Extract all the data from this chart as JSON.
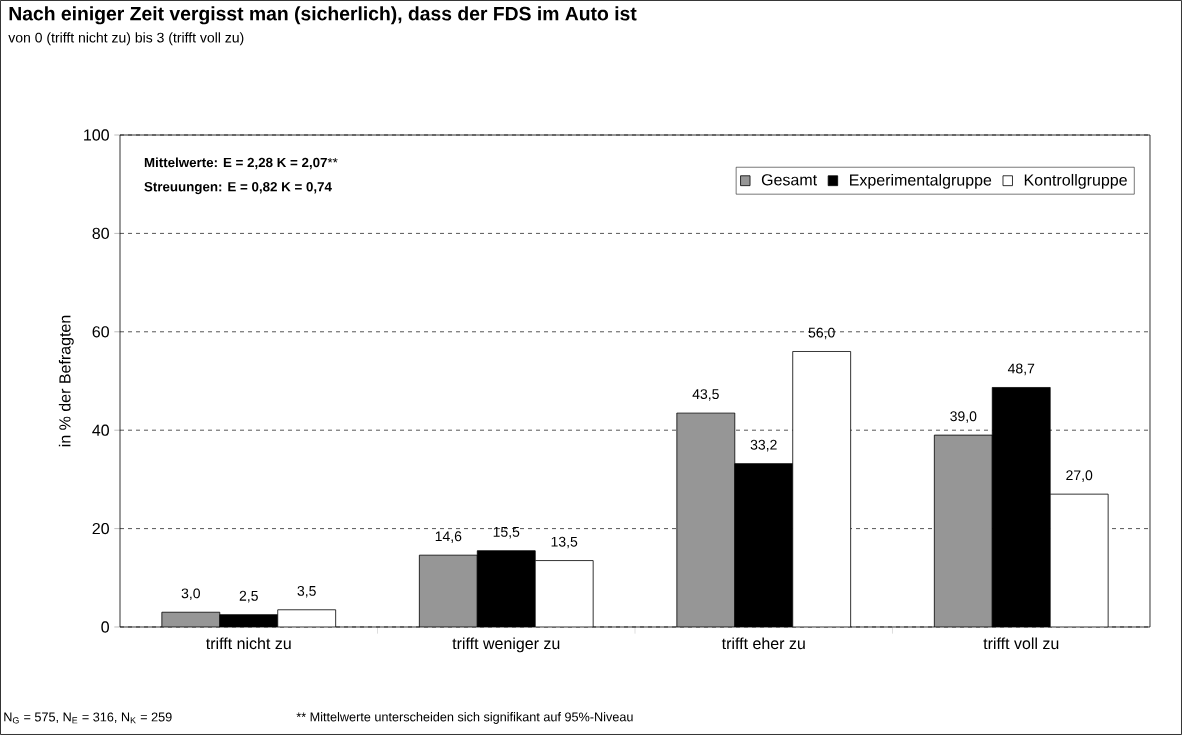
{
  "chart_data": {
    "type": "bar",
    "title": "Nach einiger Zeit vergisst man (sicherlich), dass der FDS im Auto ist",
    "subtitle": "von 0 (trifft nicht zu) bis 3 (trifft voll zu)",
    "ylabel": "in % der Befragten",
    "categories": [
      "trifft nicht zu",
      "trifft weniger zu",
      "trifft eher zu",
      "trifft voll zu"
    ],
    "series": [
      {
        "name": "Gesamt",
        "color": "#969696",
        "values": [
          3.0,
          14.6,
          43.5,
          39.0
        ],
        "value_labels": [
          "3,0",
          "14,6",
          "43,5",
          "39,0"
        ]
      },
      {
        "name": "Experimentalgruppe",
        "color": "#000000",
        "values": [
          2.5,
          15.5,
          33.2,
          48.7
        ],
        "value_labels": [
          "2,5",
          "15,5",
          "33,2",
          "48,7"
        ]
      },
      {
        "name": "Kontrollgruppe",
        "color": "#ffffff",
        "values": [
          3.5,
          13.5,
          56.0,
          27.0
        ],
        "value_labels": [
          "3,5",
          "13,5",
          "56,0",
          "27,0"
        ]
      }
    ],
    "ylim": [
      0,
      100
    ],
    "yticks": [
      0,
      20,
      40,
      60,
      80,
      100
    ],
    "grid": "y",
    "legend": "top right",
    "annotations": [
      "**Mittelwerte:  E = 2,28    K = 2,07****",
      "**Streuungen:  E = 0,82    K = 0,74**",
      "N$_{G}$ = 575, N$_{E}$ = 316, N$_{K}$ = 259",
      "** Mittelwerte unterscheiden sich signifikant auf 95%-Niveau"
    ]
  }
}
